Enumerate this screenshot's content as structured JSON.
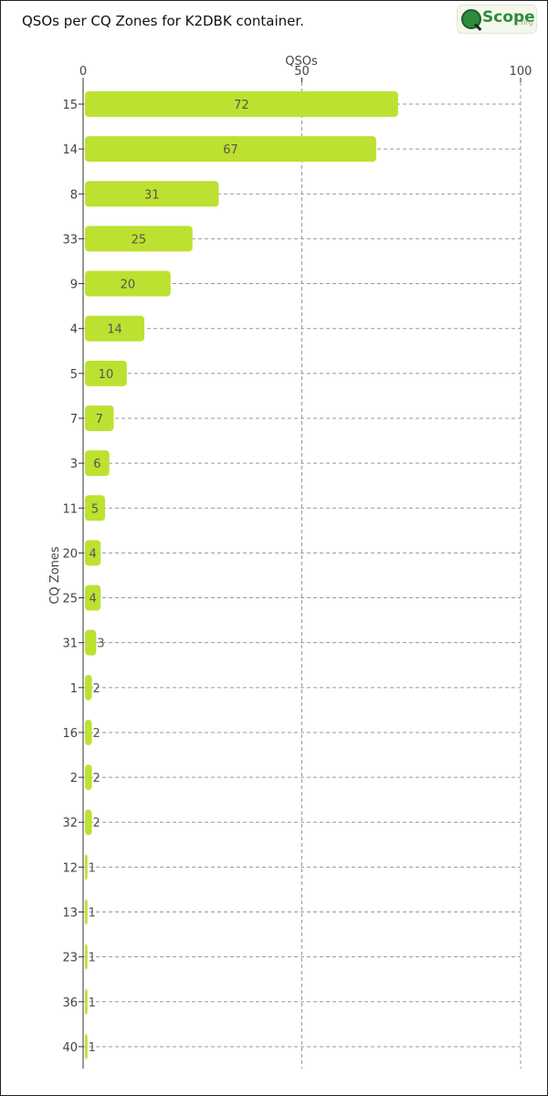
{
  "title": "QSOs per CQ Zones for K2DBK container.",
  "logo": {
    "text": "Scope",
    "domain": ".org"
  },
  "chart_data": {
    "type": "bar",
    "orientation": "horizontal",
    "xlabel": "QSOs",
    "ylabel": "CQ Zones",
    "xlim": [
      0,
      100
    ],
    "xticks": [
      0,
      50,
      100
    ],
    "x_axis_position": "top",
    "grid": "vertical dashed",
    "bar_color": "#bde130",
    "categories": [
      "15",
      "14",
      "8",
      "33",
      "9",
      "4",
      "5",
      "7",
      "3",
      "11",
      "20",
      "25",
      "31",
      "1",
      "16",
      "2",
      "32",
      "12",
      "13",
      "23",
      "36",
      "40"
    ],
    "values": [
      72,
      67,
      31,
      25,
      20,
      14,
      10,
      7,
      6,
      5,
      4,
      4,
      3,
      2,
      2,
      2,
      2,
      1,
      1,
      1,
      1,
      1
    ]
  }
}
